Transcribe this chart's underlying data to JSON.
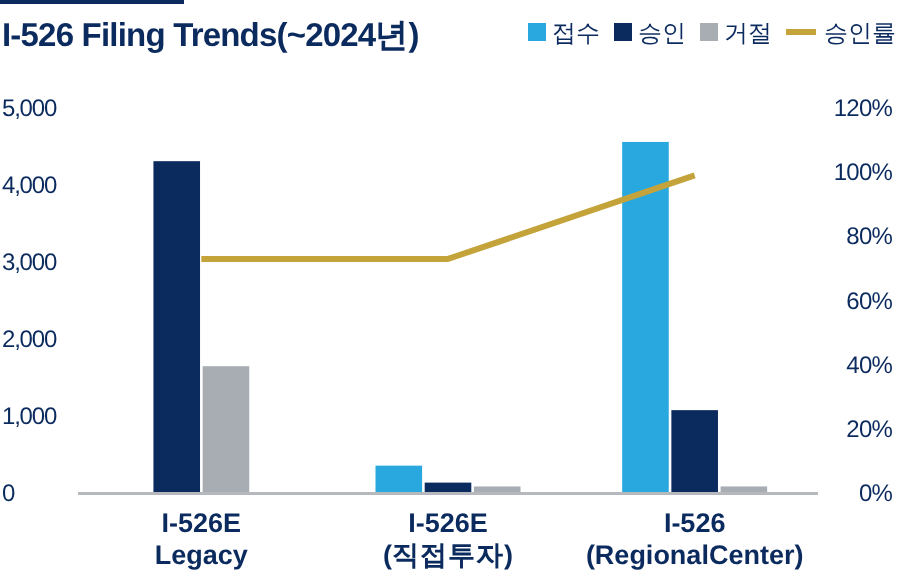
{
  "chart_data": {
    "type": "bar",
    "title": "I-526 Filing Trends(~2024년)",
    "categories": [
      "I-526E\nLegacy",
      "I-526E\n(직접투자)",
      "I-526\n(RegionalCenter)"
    ],
    "series": [
      {
        "name": "접수",
        "color": "#29a8e0",
        "values": [
          null,
          360,
          4560
        ]
      },
      {
        "name": "승인",
        "color": "#0b2a5e",
        "values": [
          4310,
          140,
          1080
        ]
      },
      {
        "name": "거절",
        "color": "#a8adb4",
        "values": [
          1650,
          90,
          90
        ]
      },
      {
        "name": "승인률",
        "type": "line",
        "axis": "y2",
        "color": "#c4a43a",
        "values": [
          73,
          73,
          99
        ]
      }
    ],
    "ylim": [
      0,
      5000
    ],
    "yticks": [
      {
        "value": 0,
        "label": "0"
      },
      {
        "value": 1000,
        "label": "1,000"
      },
      {
        "value": 2000,
        "label": "2,000"
      },
      {
        "value": 3000,
        "label": "3,000"
      },
      {
        "value": 4000,
        "label": "4,000"
      },
      {
        "value": 5000,
        "label": "5,000"
      }
    ],
    "y2lim": [
      0,
      120
    ],
    "y2ticks": [
      {
        "value": 0,
        "label": "0%"
      },
      {
        "value": 20,
        "label": "20%"
      },
      {
        "value": 40,
        "label": "40%"
      },
      {
        "value": 60,
        "label": "60%"
      },
      {
        "value": 80,
        "label": "80%"
      },
      {
        "value": 100,
        "label": "100%"
      },
      {
        "value": 120,
        "label": "120%"
      }
    ],
    "legend": "top right",
    "grid": false
  }
}
